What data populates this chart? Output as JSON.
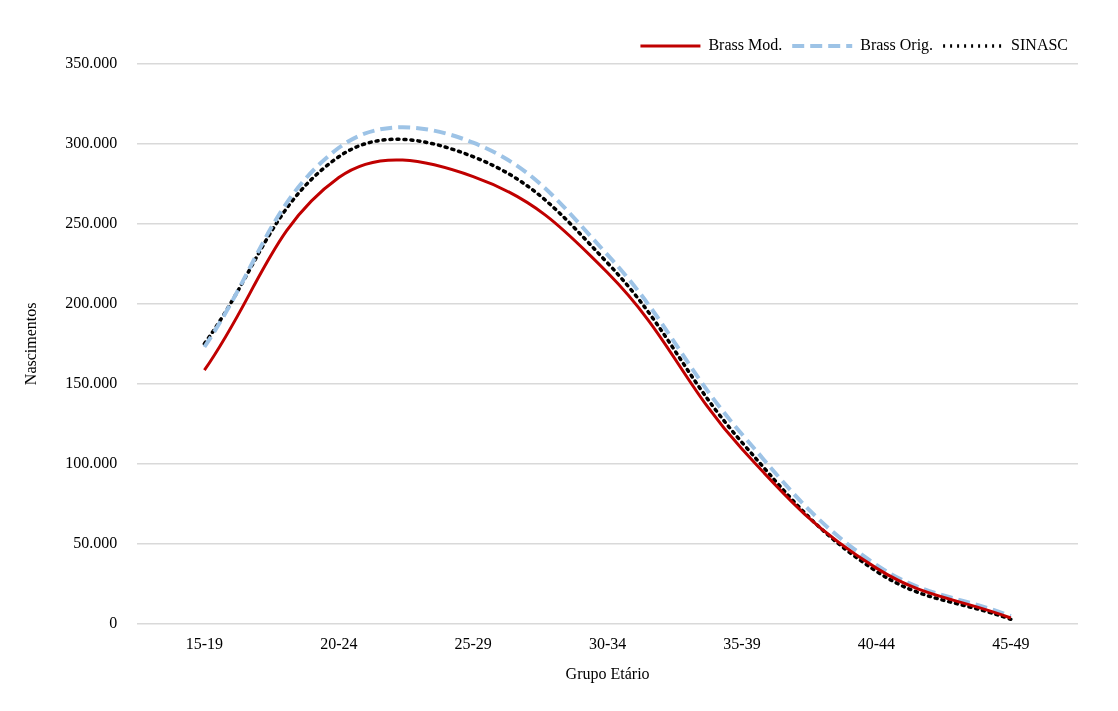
{
  "chart_data": {
    "type": "line",
    "xlabel": "Grupo Etário",
    "ylabel": "Nascimentos",
    "categories": [
      "15-19",
      "20-24",
      "25-29",
      "30-34",
      "35-39",
      "40-44",
      "45-49"
    ],
    "series": [
      {
        "name": "Brass Mod.",
        "color": "#c00000",
        "line_style": "solid",
        "values": [
          158500,
          279000,
          279600,
          219400,
          109200,
          34700,
          3500
        ]
      },
      {
        "name": "Brass Orig.",
        "color": "#9dc3e6",
        "line_style": "dashed",
        "values": [
          173000,
          297600,
          300800,
          230600,
          118400,
          36700,
          4700
        ]
      },
      {
        "name": "SINASC",
        "color": "#000000",
        "line_style": "dotted",
        "values": [
          175000,
          292000,
          292000,
          225500,
          113300,
          32700,
          2700
        ]
      }
    ],
    "ylim": [
      0,
      350000
    ],
    "yticks": [
      {
        "value": 0,
        "label": "0"
      },
      {
        "value": 50000,
        "label": "50.000"
      },
      {
        "value": 100000,
        "label": "100.000"
      },
      {
        "value": 150000,
        "label": "150.000"
      },
      {
        "value": 200000,
        "label": "200.000"
      },
      {
        "value": 250000,
        "label": "250.000"
      },
      {
        "value": 300000,
        "label": "300.000"
      },
      {
        "value": 350000,
        "label": "350.000"
      }
    ],
    "grid": "y",
    "legend": "top right",
    "marker": "none"
  }
}
